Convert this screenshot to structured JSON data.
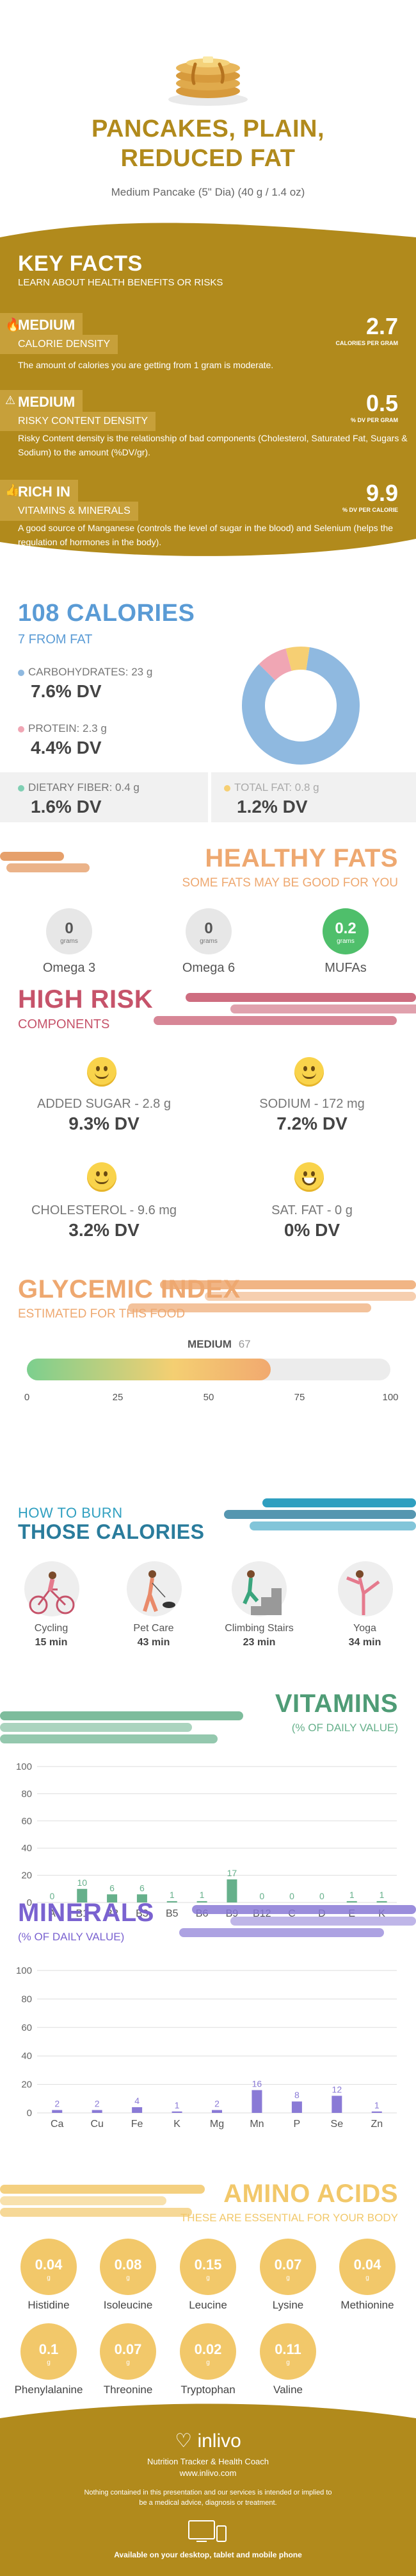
{
  "header": {
    "title_line1": "PANCAKES, PLAIN,",
    "title_line2": "REDUCED FAT",
    "subtitle": "Medium Pancake (5\" Dia) (40 g / 1.4 oz)"
  },
  "key_facts": {
    "title": "KEY FACTS",
    "subtitle": "LEARN ABOUT HEALTH BENEFITS OR RISKS",
    "items": [
      {
        "level": "MEDIUM",
        "label": "CALORIE DENSITY",
        "value": "2.7",
        "unit": "CALORIES PER GRAM",
        "text": "The amount of calories you are getting from 1 gram is moderate.",
        "icon": "flame-icon"
      },
      {
        "level": "MEDIUM",
        "label": "RISKY CONTENT DENSITY",
        "value": "0.5",
        "unit": "% DV PER GRAM",
        "text": "Risky Content density is the relationship of bad components (Cholesterol, Saturated Fat, Sugars & Sodium) to the amount (%DV/gr).",
        "icon": "warning-icon"
      },
      {
        "level": "RICH IN",
        "label": "VITAMINS & MINERALS",
        "value": "9.9",
        "unit": "% DV PER CALORIE",
        "text": "A good source of Manganese (controls the level of sugar in the blood) and Selenium (helps the regulation of hormones in the body).",
        "icon": "thumbs-up-icon"
      }
    ]
  },
  "calories": {
    "title": "108 CALORIES",
    "from_fat": "7 FROM FAT",
    "items": [
      {
        "label": "CARBOHYDRATES: 23 g",
        "dv": "7.6% DV",
        "color": "#8fb9e0"
      },
      {
        "label": "PROTEIN: 2.3 g",
        "dv": "4.4% DV",
        "color": "#f0a6b4"
      },
      {
        "label": "DIETARY FIBER: 0.4 g",
        "dv": "1.6% DV",
        "color": "#7fcfb3"
      },
      {
        "label": "TOTAL FAT: 0.8 g",
        "dv": "1.2% DV",
        "color": "#f6cf73"
      }
    ],
    "donut": [
      {
        "name": "carbohydrates",
        "value": 85,
        "color": "#8fb9e0"
      },
      {
        "name": "protein",
        "value": 8.5,
        "color": "#f0a6b4"
      },
      {
        "name": "fat",
        "value": 6.5,
        "color": "#f6cf73"
      }
    ]
  },
  "healthy_fats": {
    "title": "HEALTHY FATS",
    "subtitle": "SOME FATS MAY BE GOOD FOR YOU",
    "items": [
      {
        "value": "0",
        "unit": "grams",
        "name": "Omega 3",
        "highlight": false
      },
      {
        "value": "0",
        "unit": "grams",
        "name": "Omega 6",
        "highlight": false
      },
      {
        "value": "0.2",
        "unit": "grams",
        "name": "MUFAs",
        "highlight": true
      }
    ]
  },
  "high_risk": {
    "title": "HIGH RISK",
    "subtitle": "COMPONENTS",
    "items": [
      {
        "label": "ADDED SUGAR - 2.8 g",
        "dv": "9.3% DV",
        "icon": "smile-icon"
      },
      {
        "label": "SODIUM - 172 mg",
        "dv": "7.2% DV",
        "icon": "smile-icon"
      },
      {
        "label": "CHOLESTEROL - 9.6 mg",
        "dv": "3.2% DV",
        "icon": "smile-icon"
      },
      {
        "label": "SAT. FAT - 0 g",
        "dv": "0% DV",
        "icon": "grin-icon"
      }
    ]
  },
  "glycemic": {
    "title": "GLYCEMIC INDEX",
    "subtitle": "ESTIMATED FOR THIS FOOD",
    "level": "MEDIUM",
    "value": "67",
    "value_num": 67,
    "ticks": [
      "0",
      "25",
      "50",
      "75",
      "100"
    ]
  },
  "burn": {
    "title_line1": "HOW TO BURN",
    "title_line2": "THOSE CALORIES",
    "items": [
      {
        "name": "Cycling",
        "time": "15 min",
        "icon": "cycling-icon"
      },
      {
        "name": "Pet Care",
        "time": "43 min",
        "icon": "pet-care-icon"
      },
      {
        "name": "Climbing Stairs",
        "time": "23 min",
        "icon": "climbing-stairs-icon"
      },
      {
        "name": "Yoga",
        "time": "34 min",
        "icon": "yoga-icon"
      }
    ]
  },
  "vitamins": {
    "title": "VITAMINS",
    "subtitle": "(% OF DAILY VALUE)"
  },
  "minerals": {
    "title": "MINERALS",
    "subtitle": "(% OF DAILY VALUE)"
  },
  "amino": {
    "title": "AMINO ACIDS",
    "subtitle": "THESE ARE ESSENTIAL FOR YOUR BODY",
    "unit": "g",
    "items": [
      {
        "name": "Histidine",
        "value": "0.04"
      },
      {
        "name": "Isoleucine",
        "value": "0.08"
      },
      {
        "name": "Leucine",
        "value": "0.15"
      },
      {
        "name": "Lysine",
        "value": "0.07"
      },
      {
        "name": "Methionine",
        "value": "0.04"
      },
      {
        "name": "Phenylalanine",
        "value": "0.1"
      },
      {
        "name": "Threonine",
        "value": "0.07"
      },
      {
        "name": "Tryptophan",
        "value": "0.02"
      },
      {
        "name": "Valine",
        "value": "0.11"
      }
    ]
  },
  "footer": {
    "brand": "inlivo",
    "tagline": "Nutrition Tracker & Health Coach",
    "url": "www.inlivo.com",
    "disclaimer": "Nothing contained in this presentation and our services is intended or implied to be a medical advice, diagnosis or treatment.",
    "available": "Available on your desktop, tablet and mobile phone"
  },
  "chart_data": [
    {
      "type": "bar",
      "categories": [
        "A",
        "B1",
        "B2",
        "B3",
        "B5",
        "B6",
        "B9",
        "B12",
        "C",
        "D",
        "E",
        "K"
      ],
      "values": [
        0,
        10,
        6,
        6,
        1,
        1,
        17,
        0,
        0,
        0,
        1,
        1
      ],
      "value_labels": [
        "0",
        "10",
        "6",
        "6",
        "1",
        "1",
        "17",
        "0",
        "0",
        "0",
        "1",
        "1"
      ],
      "ylim": [
        0,
        100
      ],
      "yticks": [
        "0",
        "20",
        "40",
        "60",
        "80",
        "100"
      ],
      "color": "#66b08b",
      "label_color": "#66b08b",
      "grid": true
    },
    {
      "type": "bar",
      "categories": [
        "Ca",
        "Cu",
        "Fe",
        "K",
        "Mg",
        "Mn",
        "P",
        "Se",
        "Zn"
      ],
      "values": [
        2,
        2,
        4,
        1,
        2,
        16,
        8,
        12,
        1
      ],
      "value_labels": [
        "2",
        "2",
        "4",
        "1",
        "2",
        "16",
        "8",
        "12",
        "1"
      ],
      "ylim": [
        0,
        100
      ],
      "yticks": [
        "0",
        "20",
        "40",
        "60",
        "80",
        "100"
      ],
      "color": "#8a7ad6",
      "label_color": "#8a7ad6",
      "grid": true
    }
  ]
}
